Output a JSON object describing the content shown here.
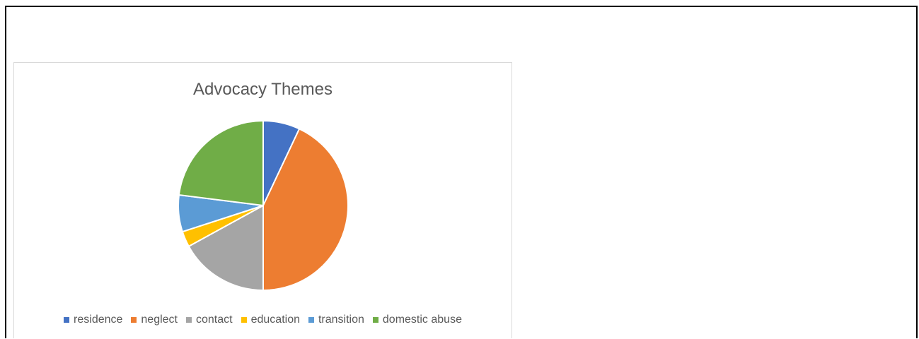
{
  "chart_data": {
    "type": "pie",
    "title": "Advocacy Themes",
    "categories": [
      "residence",
      "neglect",
      "contact",
      "education",
      "transition",
      "domestic abuse"
    ],
    "values": [
      7,
      43,
      17,
      3,
      7,
      23
    ],
    "colors": [
      "#4472C4",
      "#ED7D31",
      "#A5A5A5",
      "#FFC000",
      "#5B9BD5",
      "#70AD47"
    ],
    "legend_position": "bottom"
  }
}
